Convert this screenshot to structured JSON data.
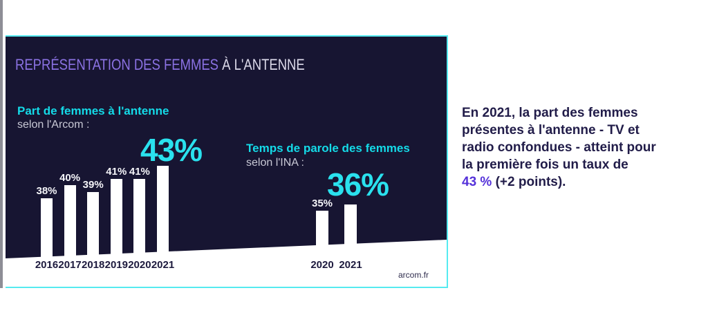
{
  "panel": {
    "title_accent": "REPRÉSENTATION DES FEMMES",
    "title_rest": " À L'ANTENNE",
    "source": "arcom.fr"
  },
  "chart_data": [
    {
      "type": "bar",
      "title": "Part de femmes à l'antenne",
      "subtitle": "selon l'Arcom :",
      "categories": [
        "2016",
        "2017",
        "2018",
        "2019",
        "2020",
        "2021"
      ],
      "values": [
        38,
        40,
        39,
        41,
        41,
        43
      ],
      "labels": [
        "38%",
        "40%",
        "39%",
        "41%",
        "41%",
        "43%"
      ],
      "highlight_index": 5,
      "unit": "%",
      "legend_position": "none",
      "grid": false
    },
    {
      "type": "bar",
      "title": "Temps de parole des femmes",
      "subtitle": "selon l'INA :",
      "categories": [
        "2020",
        "2021"
      ],
      "values": [
        35,
        36
      ],
      "labels": [
        "35%",
        "36%"
      ],
      "highlight_index": 1,
      "unit": "%",
      "legend_position": "none",
      "grid": false
    }
  ],
  "callout": {
    "lines": [
      {
        "text": "En 2021, la part des femmes"
      },
      {
        "text": "présentes à l'antenne - TV et"
      },
      {
        "text": "radio confondues - atteint pour"
      },
      {
        "text": "la première fois un taux de"
      },
      {
        "highlight": "43 %",
        "text": " (+2 points)."
      }
    ]
  },
  "colors": {
    "panel_background": "#171532",
    "border_cyan": "#55eaf0",
    "title_purple": "#8b72e3",
    "header_cyan": "#14dbe8",
    "big_number_cyan": "#2ae1ee",
    "bar_white": "#ffffff",
    "year_navy": "#1d1a3e",
    "callout_navy": "#211c49",
    "callout_purple": "#5431d9"
  }
}
